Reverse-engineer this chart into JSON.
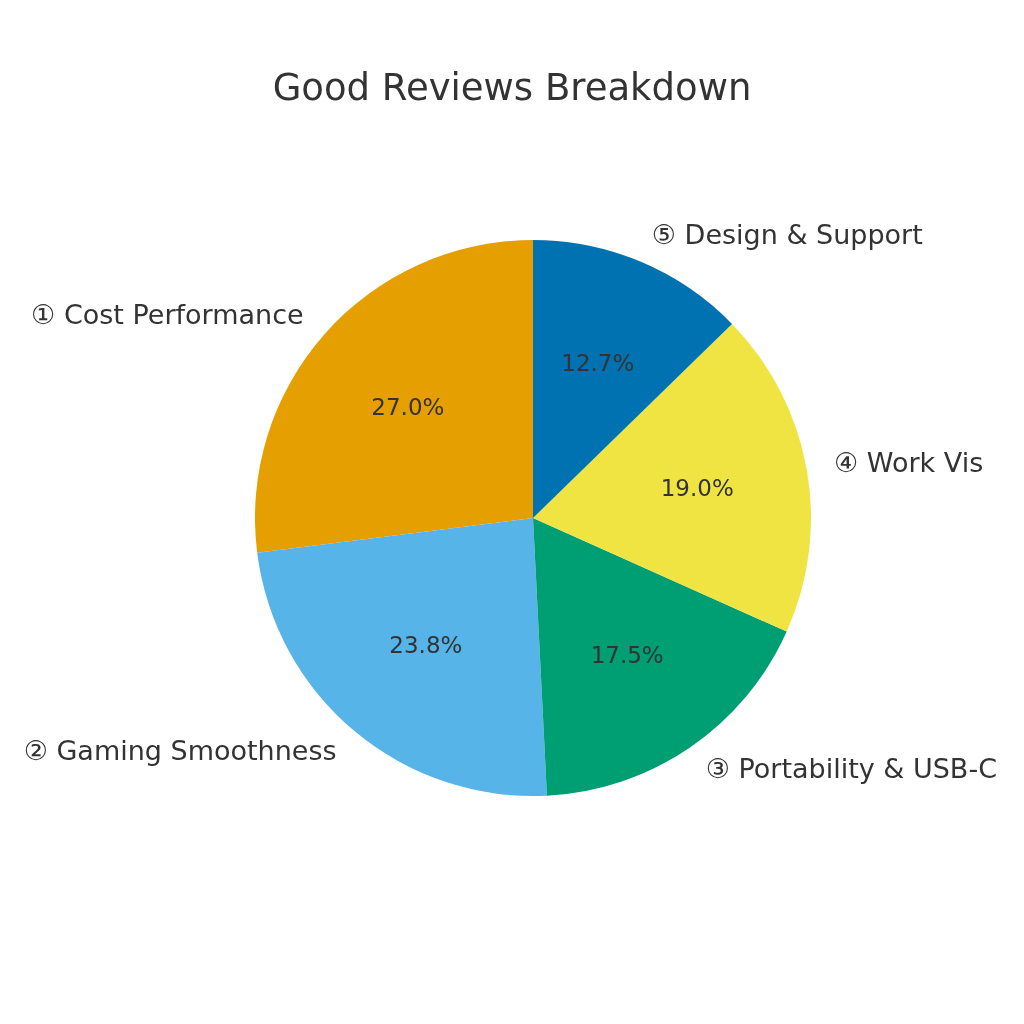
{
  "chart_data": {
    "type": "pie",
    "title": "Good Reviews Breakdown",
    "categories": [
      "① Cost Performance",
      "② Gaming Smoothness",
      "③ Portability & USB-C",
      "④ Work Vis",
      "⑤ Design & Support"
    ],
    "values": [
      27.0,
      23.8,
      17.5,
      19.0,
      12.7
    ],
    "colors": [
      "#e69f00",
      "#56b4e9",
      "#009e73",
      "#f0e442",
      "#0072b2"
    ],
    "value_labels": [
      "27.0%",
      "23.8%",
      "17.5%",
      "19.0%",
      "12.7%"
    ]
  }
}
